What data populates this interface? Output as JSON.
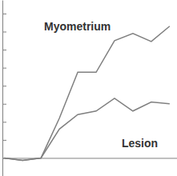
{
  "chart_data": {
    "type": "line",
    "x": [
      0,
      1,
      2,
      3,
      4,
      5,
      6,
      7,
      8,
      9
    ],
    "series": [
      {
        "name": "Myometrium",
        "color": "#808080",
        "values": [
          0,
          -0.13,
          0,
          2.2,
          4.75,
          4.75,
          6.5,
          6.9,
          6.45,
          7.3
        ]
      },
      {
        "name": "Lesion",
        "color": "#808080",
        "values": [
          0,
          -0.13,
          0,
          1.6,
          2.4,
          2.6,
          3.3,
          2.6,
          3.1,
          3.0
        ]
      }
    ],
    "xlim": [
      -0.1,
      9.4
    ],
    "ylim": [
      -1,
      8.75
    ],
    "yticks": [
      0,
      1,
      2,
      3,
      4,
      5,
      6,
      7,
      8
    ],
    "tick_labels": false,
    "grid": false
  }
}
